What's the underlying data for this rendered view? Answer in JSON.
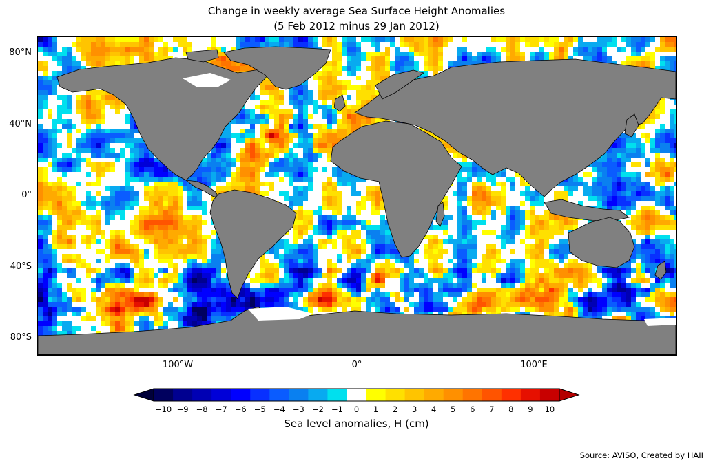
{
  "title": {
    "line1": "Change in weekly average Sea Surface Height Anomalies",
    "line2": "(5 Feb 2012 minus 29 Jan 2012)"
  },
  "axes": {
    "lat_labels": [
      "80°N",
      "40°N",
      "0°",
      "40°S",
      "80°S"
    ],
    "lat_values": [
      80,
      40,
      0,
      -40,
      -80
    ],
    "lon_labels": [
      "100°W",
      "0°",
      "100°E"
    ],
    "lon_values": [
      -100,
      0,
      100
    ],
    "lon_range": [
      -180,
      180
    ],
    "lat_range": [
      -90,
      90
    ]
  },
  "colorbar": {
    "label": "Sea level anomalies, H (cm)",
    "ticks": [
      "−10",
      "−9",
      "−8",
      "−7",
      "−6",
      "−5",
      "−4",
      "−3",
      "−2",
      "−1",
      "0",
      "1",
      "2",
      "3",
      "4",
      "5",
      "6",
      "7",
      "8",
      "9",
      "10"
    ],
    "tick_values": [
      -10,
      -9,
      -8,
      -7,
      -6,
      -5,
      -4,
      -3,
      -2,
      -1,
      0,
      1,
      2,
      3,
      4,
      5,
      6,
      7,
      8,
      9,
      10
    ],
    "colors": [
      "#00005e",
      "#000090",
      "#0000b4",
      "#0000d8",
      "#0000ff",
      "#0830ff",
      "#0a5cff",
      "#0a80f0",
      "#08aaf0",
      "#00e0ee",
      "#ffffff",
      "#ffff00",
      "#ffe000",
      "#ffc400",
      "#ffaa00",
      "#ff9000",
      "#ff7400",
      "#ff5400",
      "#ff3000",
      "#e61000",
      "#c80000"
    ],
    "extend": "both"
  },
  "colors": {
    "land": "#808080",
    "sea_ice": "#ffffff",
    "frame": "#000000"
  },
  "source": "Source: AVISO, Created by HAII"
}
